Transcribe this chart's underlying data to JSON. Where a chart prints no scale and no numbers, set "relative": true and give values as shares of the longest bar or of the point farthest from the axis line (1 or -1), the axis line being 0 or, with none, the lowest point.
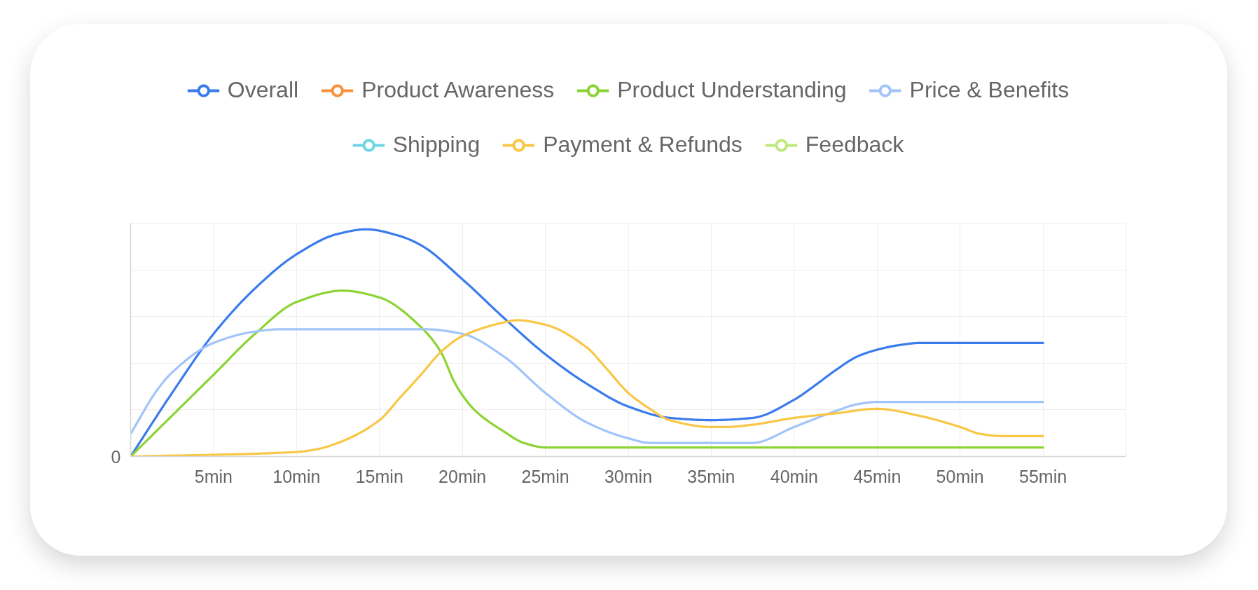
{
  "chart_data": {
    "type": "line",
    "relative": true,
    "xlim": [
      0,
      60
    ],
    "xticks": [
      {
        "value": 5,
        "label": "5min"
      },
      {
        "value": 10,
        "label": "10min"
      },
      {
        "value": 15,
        "label": "15min"
      },
      {
        "value": 20,
        "label": "20min"
      },
      {
        "value": 25,
        "label": "25min"
      },
      {
        "value": 30,
        "label": "30min"
      },
      {
        "value": 35,
        "label": "35min"
      },
      {
        "value": 40,
        "label": "40min"
      },
      {
        "value": 45,
        "label": "45min"
      },
      {
        "value": 50,
        "label": "50min"
      },
      {
        "value": 55,
        "label": "55min"
      }
    ],
    "annotations": [
      "0"
    ],
    "grid": true,
    "legend": "top",
    "series": [
      {
        "name": "Overall",
        "color": "#3a7bee",
        "x": [
          0,
          2.5,
          5,
          7.5,
          10,
          12.5,
          14.2,
          16.25,
          17.5,
          20,
          22.5,
          25,
          27.5,
          30,
          32.5,
          35,
          37.5,
          40,
          41.2,
          42.5,
          43.8,
          45,
          46.3,
          47.6,
          55
        ],
        "values": [
          0,
          0.28,
          0.54,
          0.74,
          0.89,
          0.98,
          1,
          0.97,
          0.93,
          0.78,
          0.61,
          0.45,
          0.32,
          0.22,
          0.17,
          0.16,
          0.17,
          0.25,
          0.31,
          0.38,
          0.44,
          0.47,
          0.49,
          0.5,
          0.5
        ]
      },
      {
        "name": "Product Awareness",
        "color": "#f8923a"
      },
      {
        "name": "Product Understanding",
        "color": "#8cd334",
        "x": [
          0,
          2.5,
          5,
          7.5,
          10,
          12.8,
          15,
          17.5,
          18.7,
          19.5,
          20,
          20.8,
          22.5,
          23.7,
          25,
          55
        ],
        "values": [
          0,
          0.18,
          0.36,
          0.54,
          0.68,
          0.73,
          0.7,
          0.57,
          0.46,
          0.33,
          0.27,
          0.2,
          0.11,
          0.06,
          0.04,
          0.04
        ]
      },
      {
        "name": "Price & Benefits",
        "color": "#a1c4fa",
        "x": [
          0,
          1.67,
          2.5,
          5,
          7.5,
          9,
          17.8,
          20,
          22.5,
          25,
          27.5,
          30,
          31.3,
          37.5,
          40,
          42.5,
          43.8,
          45,
          55
        ],
        "values": [
          0.1,
          0.3,
          0.37,
          0.5,
          0.55,
          0.56,
          0.56,
          0.54,
          0.44,
          0.28,
          0.15,
          0.08,
          0.06,
          0.06,
          0.13,
          0.2,
          0.23,
          0.24,
          0.24
        ]
      },
      {
        "name": "Shipping",
        "color": "#6dd5e3"
      },
      {
        "name": "Payment & Refunds",
        "color": "#f9c646",
        "x": [
          0,
          10,
          11.1,
          12.5,
          15,
          16.25,
          17.5,
          18.7,
          20,
          22.5,
          23.3,
          25,
          27.5,
          28.65,
          30,
          31.3,
          32.5,
          35,
          35.9,
          37.5,
          40,
          42.5,
          45,
          47.5,
          50,
          51.2,
          52.5,
          55
        ],
        "values": [
          0,
          0.02,
          0.03,
          0.06,
          0.16,
          0.26,
          0.36,
          0.46,
          0.53,
          0.59,
          0.6,
          0.58,
          0.48,
          0.39,
          0.28,
          0.21,
          0.16,
          0.13,
          0.13,
          0.14,
          0.17,
          0.19,
          0.21,
          0.18,
          0.13,
          0.1,
          0.09,
          0.09
        ]
      },
      {
        "name": "Feedback",
        "color": "#bfe87c"
      }
    ]
  }
}
